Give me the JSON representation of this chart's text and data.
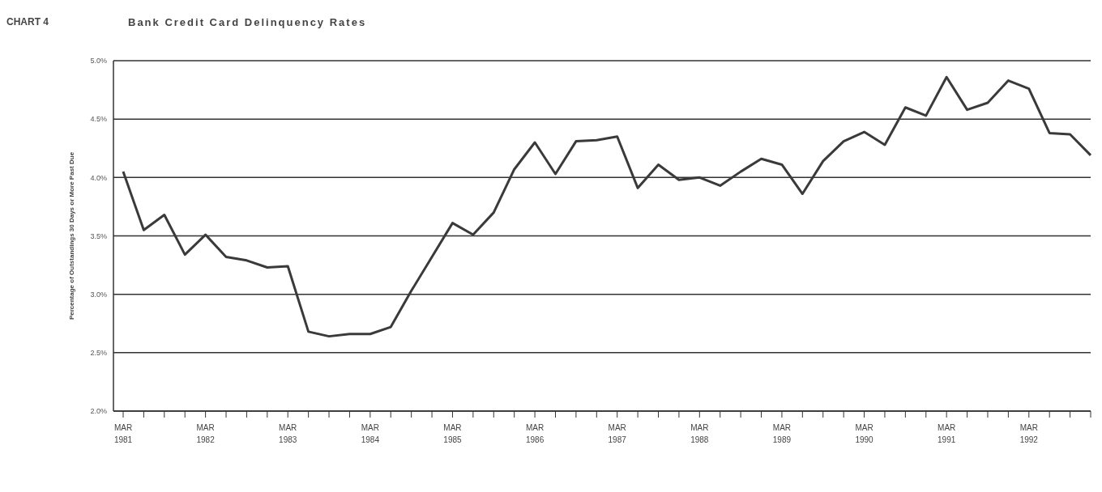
{
  "chart_data": {
    "type": "line",
    "title": "Bank Credit Card Delinquency Rates",
    "annotations": [
      "CHART 4"
    ],
    "ylabel": "Percentage of Outstandings 30 Days or More Past Due",
    "categories": [
      "MAR 1981",
      null,
      null,
      null,
      "MAR 1982",
      null,
      null,
      null,
      "MAR 1983",
      null,
      null,
      null,
      "MAR 1984",
      null,
      null,
      null,
      "MAR 1985",
      null,
      null,
      null,
      "MAR 1986",
      null,
      null,
      null,
      "MAR 1987",
      null,
      null,
      null,
      "MAR 1988",
      null,
      null,
      null,
      "MAR 1989",
      null,
      null,
      null,
      "MAR 1990",
      null,
      null,
      null,
      "MAR 1991",
      null,
      null,
      null,
      "MAR 1992",
      null,
      null,
      null
    ],
    "values": [
      4.05,
      3.55,
      3.68,
      3.34,
      3.51,
      3.32,
      3.29,
      3.23,
      3.24,
      2.68,
      2.64,
      2.66,
      2.66,
      2.72,
      3.03,
      3.32,
      3.61,
      3.51,
      3.7,
      4.07,
      4.3,
      4.03,
      4.31,
      4.32,
      4.35,
      3.91,
      4.11,
      3.98,
      4.0,
      3.93,
      4.05,
      4.16,
      4.11,
      3.86,
      4.14,
      4.31,
      4.39,
      4.28,
      4.6,
      4.53,
      4.86,
      4.58,
      4.64,
      4.83,
      4.76,
      4.38,
      4.37,
      4.19
    ],
    "color": "#3a3a3a",
    "ylim": [
      2,
      5
    ],
    "yticks": [
      {
        "value": 2,
        "label": "2.0%"
      },
      {
        "value": 2.5,
        "label": "2.5%"
      },
      {
        "value": 3,
        "label": "3.0%"
      },
      {
        "value": 3.5,
        "label": "3.5%"
      },
      {
        "value": 4,
        "label": "4.0%"
      },
      {
        "value": 4.5,
        "label": "4.5%"
      },
      {
        "value": 5,
        "label": "5.0%"
      }
    ],
    "grid": "y",
    "marker": "none",
    "line_style": "solid"
  }
}
